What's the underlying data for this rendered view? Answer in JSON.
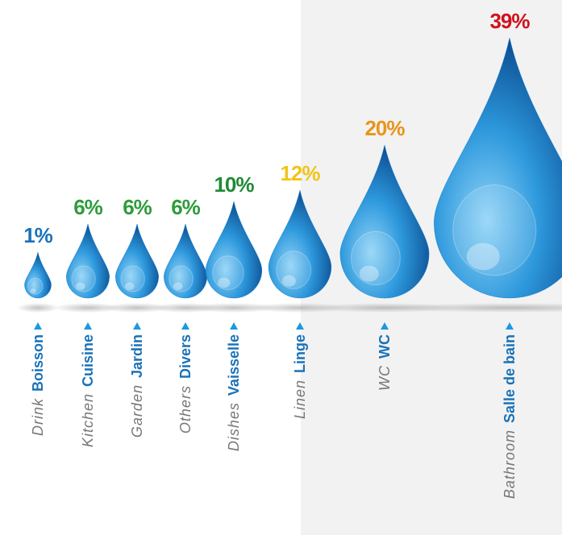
{
  "chart_data": {
    "type": "pictogram",
    "categories": [
      "Boisson",
      "Cuisine",
      "Jardin",
      "Divers",
      "Vaisselle",
      "Linge",
      "WC",
      "Salle de bain"
    ],
    "translations": [
      "Drink",
      "Kitchen",
      "Garden",
      "Others",
      "Dishes",
      "Linen",
      "WC",
      "Bathroom"
    ],
    "values": [
      1,
      6,
      6,
      6,
      10,
      12,
      20,
      39
    ],
    "value_labels": [
      "1%",
      "6%",
      "6%",
      "6%",
      "10%",
      "12%",
      "20%",
      "39%"
    ],
    "label_colors": [
      "#1a72b8",
      "#2e9c3a",
      "#2e9c3a",
      "#2e9c3a",
      "#1f8a35",
      "#f2c418",
      "#e8951a",
      "#d0121b"
    ],
    "color": "#1a7fcf"
  }
}
